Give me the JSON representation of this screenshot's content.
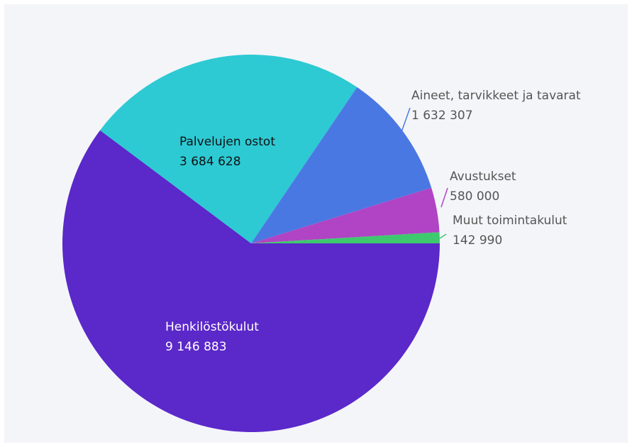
{
  "chart_data": {
    "type": "pie",
    "title": "",
    "slices": [
      {
        "label": "Henkilöstökulut",
        "value": 9146883,
        "value_text": "9 146 883",
        "color": "#5b28c9",
        "label_placement": "inside",
        "label_color": "#ffffff"
      },
      {
        "label": "Palvelujen ostot",
        "value": 3684628,
        "value_text": "3 684 628",
        "color": "#2dcad4",
        "label_placement": "inside",
        "label_color": "#111111"
      },
      {
        "label": "Aineet, tarvikkeet ja tavarat",
        "value": 1632307,
        "value_text": "1 632 307",
        "color": "#4a78e3",
        "label_placement": "outside"
      },
      {
        "label": "Avustukset",
        "value": 580000,
        "value_text": "580 000",
        "color": "#b044c4",
        "label_placement": "outside"
      },
      {
        "label": "Muut toimintakulut",
        "value": 142990,
        "value_text": "142 990",
        "color": "#3ec96e",
        "label_placement": "outside"
      }
    ],
    "start_angle": "3 o'clock",
    "direction": "clockwise",
    "legend": "none",
    "background": "#f4f5f9"
  }
}
